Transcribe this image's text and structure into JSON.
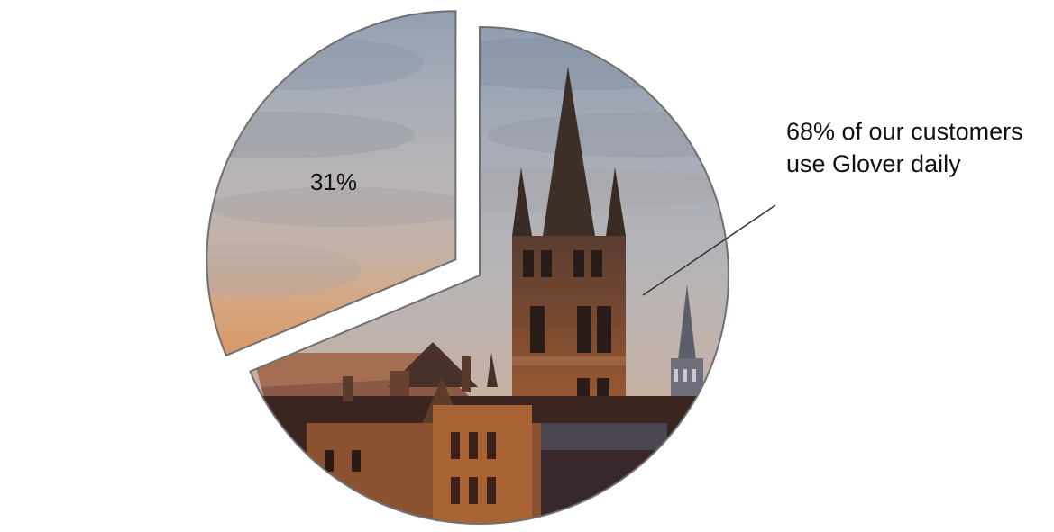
{
  "chart_data": {
    "type": "pie",
    "slices": [
      {
        "label": "31%",
        "value": 31,
        "exploded": true,
        "fill": "sky"
      },
      {
        "label": "68%",
        "value": 68,
        "exploded": false,
        "fill": "tower"
      }
    ],
    "callout": {
      "line1": "68% of our customers",
      "line2": "use Glover daily"
    },
    "colors": {
      "sky_top": "#9ea9b8",
      "sky_mid": "#b7b3b4",
      "sky_low": "#cbb1a0",
      "sunset": "#d89868",
      "stone_dark": "#3a2a24",
      "stone_warm": "#8a5436",
      "outline": "#6d6d6d"
    }
  }
}
